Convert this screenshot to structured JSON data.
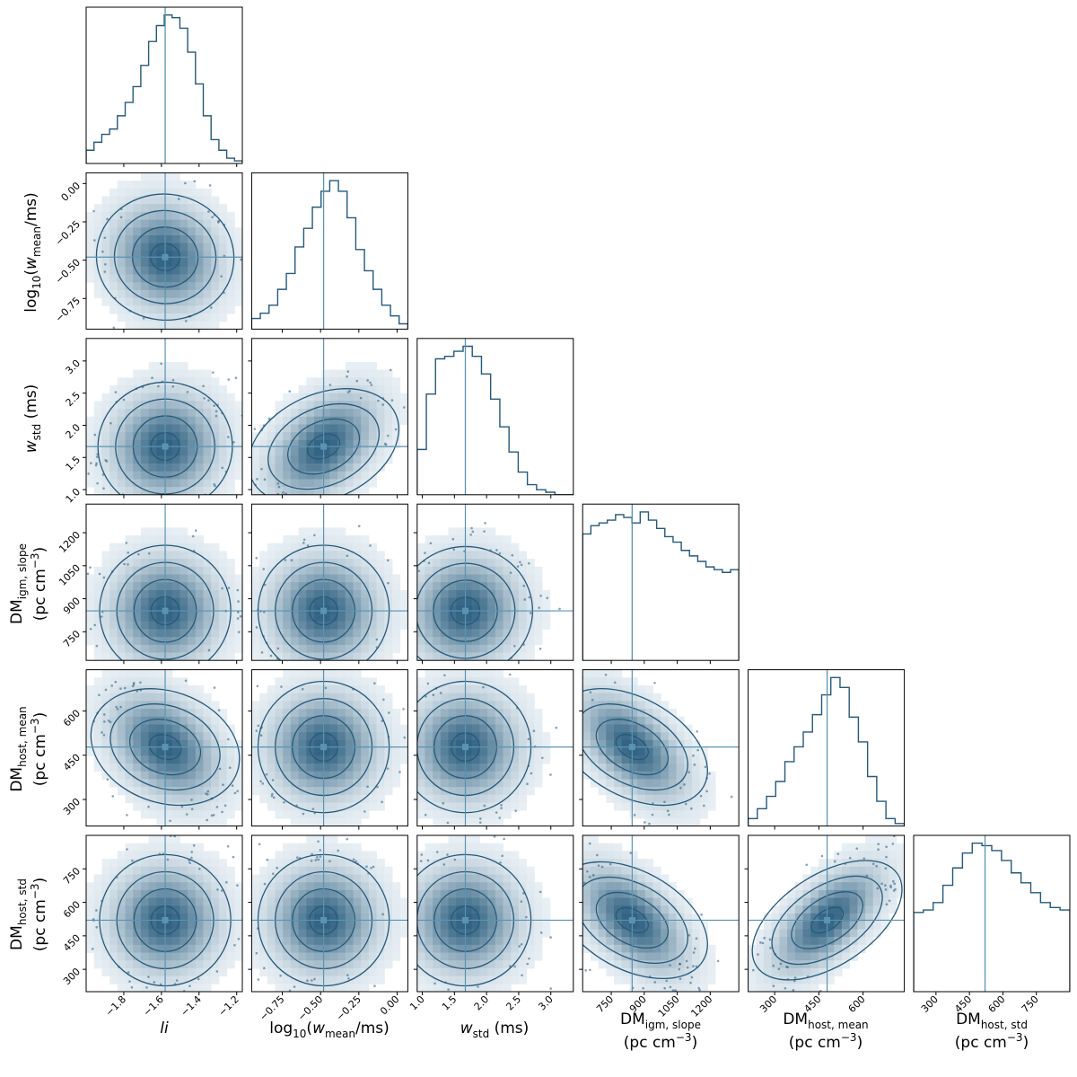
{
  "chart_data": {
    "type": "corner",
    "colors": {
      "main": "#25597a",
      "truth": "#5b93b1",
      "fill_light": "#eef4f8"
    },
    "parameters": [
      {
        "key": "li",
        "label": "li",
        "range": [
          -2.0,
          -1.17
        ],
        "ticks": [
          -1.8,
          -1.6,
          -1.4,
          -1.2
        ],
        "tick_labels": [
          "−1.8",
          "−1.6",
          "−1.4",
          "−1.2"
        ],
        "truth": -1.58
      },
      {
        "key": "log10_wmean",
        "label": "log10(w_mean/ms)",
        "range": [
          -0.95,
          0.07
        ],
        "ticks": [
          -0.75,
          -0.5,
          -0.25,
          0.0
        ],
        "tick_labels": [
          "−0.75",
          "−0.50",
          "−0.25",
          "0.00"
        ],
        "truth": -0.48
      },
      {
        "key": "wstd",
        "label": "w_std (ms)",
        "range": [
          0.92,
          3.35
        ],
        "ticks": [
          1.0,
          1.5,
          2.0,
          2.5,
          3.0
        ],
        "tick_labels": [
          "1.0",
          "1.5",
          "2.0",
          "2.5",
          "3.0"
        ],
        "truth": 1.67
      },
      {
        "key": "dm_igm_slope",
        "label": "DM_igm,slope (pc cm^-3)",
        "range": [
          620,
          1330
        ],
        "ticks": [
          750,
          900,
          1050,
          1200
        ],
        "tick_labels": [
          "750",
          "900",
          "1050",
          "1200"
        ],
        "truth": 845
      },
      {
        "key": "dm_host_mean",
        "label": "DM_host,mean (pc cm^-3)",
        "range": [
          210,
          740
        ],
        "ticks": [
          300,
          450,
          600
        ],
        "tick_labels": [
          "300",
          "450",
          "600"
        ],
        "truth": 478
      },
      {
        "key": "dm_host_std",
        "label": "DM_host,std (pc cm^-3)",
        "range": [
          200,
          900
        ],
        "ticks": [
          300,
          450,
          600,
          750
        ],
        "tick_labels": [
          "300",
          "450",
          "600",
          "750"
        ],
        "truth": 520
      }
    ],
    "axis_labels": {
      "li": "li",
      "log10_pre": "log",
      "log10_sub": "10",
      "log10_mid": "(w",
      "log10_sub2": "mean",
      "log10_post": "/ms)",
      "wstd_pre": "w",
      "wstd_sub": "std",
      "wstd_post": " (ms)",
      "dm": "DM",
      "igm_slope_sub": "igm, slope",
      "host_mean_sub": "host, mean",
      "host_std_sub": "host, std",
      "units": "(pc cm",
      "units_exp": "−3",
      "units_close": ")"
    },
    "histograms": [
      [
        5,
        8,
        11,
        13,
        18,
        23,
        29,
        37,
        46,
        52,
        56,
        55,
        51,
        42,
        30,
        18,
        9,
        5,
        2,
        1
      ],
      [
        4,
        6,
        9,
        15,
        21,
        31,
        38,
        46,
        52,
        56,
        52,
        42,
        30,
        22,
        15,
        9,
        5,
        2
      ],
      [
        18,
        40,
        54,
        55,
        57,
        59,
        55,
        48,
        38,
        27,
        17,
        9,
        4,
        2,
        1,
        0,
        0
      ],
      [
        46,
        49,
        50,
        51,
        53,
        52,
        50,
        54,
        51,
        48,
        45,
        43,
        40,
        38,
        36,
        34,
        33,
        32,
        33
      ],
      [
        3,
        7,
        12,
        18,
        26,
        32,
        38,
        45,
        53,
        60,
        56,
        44,
        34,
        20,
        10,
        3,
        1
      ],
      [
        32,
        33,
        36,
        43,
        50,
        56,
        60,
        59,
        57,
        53,
        48,
        44,
        40,
        36,
        34,
        33
      ]
    ],
    "correlations": {
      "1-0": -0.1,
      "2-0": 0.05,
      "2-1": 0.45,
      "3-0": 0.0,
      "3-1": 0.0,
      "3-2": 0.05,
      "4-0": -0.35,
      "4-1": 0.0,
      "4-2": 0.0,
      "4-3": -0.55,
      "5-0": 0.0,
      "5-1": 0.0,
      "5-2": 0.0,
      "5-3": -0.55,
      "5-4": 0.65
    }
  }
}
